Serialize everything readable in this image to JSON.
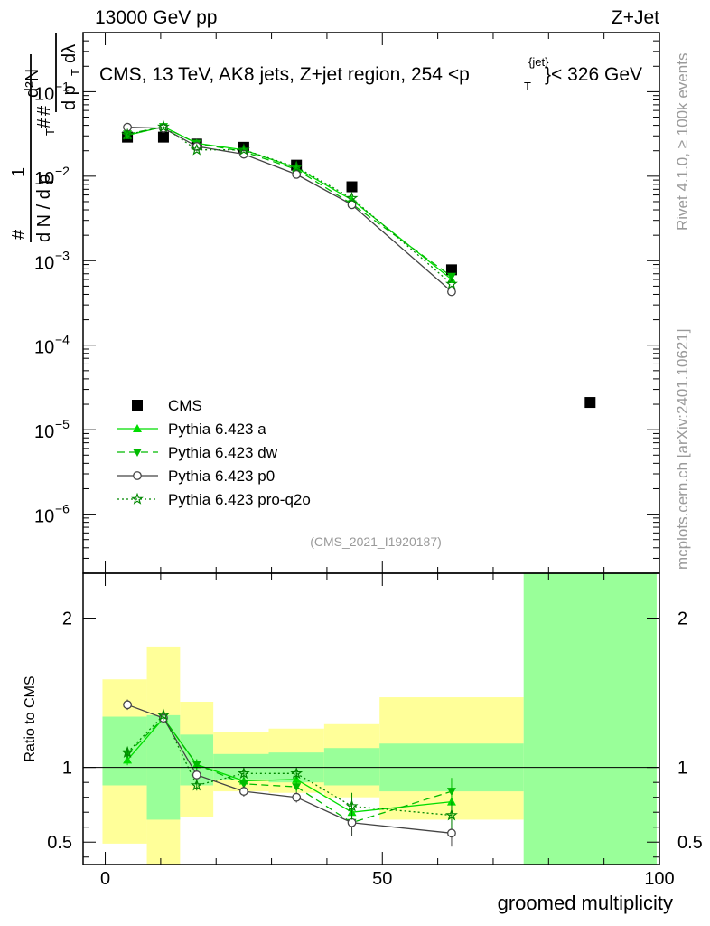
{
  "header": {
    "left": "13000 GeV pp",
    "right": "Z+Jet"
  },
  "side": {
    "rivet": "Rivet 4.1.0, ≥ 100k events",
    "mcplots": "mcplots.cern.ch [arXiv:2401.10621]"
  },
  "ylabel_main": {
    "hash": "#",
    "one": "1",
    "dN": "d N / d p",
    "T": "T",
    "hash2": "#",
    "dp": "d p",
    "T2": "T",
    "dl": "dλ",
    "hash3": "#",
    "d2N": "d²N"
  },
  "chart_data": {
    "type": "line",
    "title": "CMS, 13 TeV, AK8 jets, Z+jet region, 254 <p",
    "title_sup": "{jet}",
    "title_sub": "T",
    "title_end": "}< 326 GeV",
    "watermark": "(CMS_2021_I1920187)",
    "xlabel": "groomed multiplicity",
    "ylabel_ratio": "Ratio to CMS",
    "xlim": [
      -4,
      100
    ],
    "ylim_main_log10": [
      -6.7,
      -0.3
    ],
    "ylim_ratio": [
      0.35,
      2.3
    ],
    "x_ticks": [
      "0",
      "50",
      "100"
    ],
    "y_ticks_main": [
      "10",
      "10",
      "10",
      "10",
      "10",
      "10"
    ],
    "y_ticks_main_exp": [
      "−1",
      "−2",
      "−3",
      "−4",
      "−5",
      "−6"
    ],
    "y_ticks_ratio": [
      "0.5",
      "1",
      "2"
    ],
    "reference": {
      "name": "CMS",
      "x": [
        4,
        10.5,
        16.5,
        25,
        34.5,
        44.5,
        62.5,
        87.5
      ],
      "y": [
        0.029,
        0.029,
        0.024,
        0.022,
        0.0135,
        0.0075,
        0.00078,
        2.1e-05
      ]
    },
    "bands": {
      "edges": [
        -0.5,
        7.5,
        13.5,
        19.5,
        29.5,
        39.5,
        49.5,
        75.5,
        99.5
      ],
      "inner": [
        [
          0.88,
          1.34
        ],
        [
          0.65,
          1.35
        ],
        [
          0.88,
          1.22
        ],
        [
          0.92,
          1.09
        ],
        [
          0.9,
          1.1
        ],
        [
          0.88,
          1.13
        ],
        [
          0.84,
          1.16
        ],
        [
          0.0,
          3.0
        ]
      ],
      "outer": [
        [
          0.49,
          1.59
        ],
        [
          0.35,
          1.81
        ],
        [
          0.67,
          1.44
        ],
        [
          0.84,
          1.24
        ],
        [
          0.83,
          1.26
        ],
        [
          0.8,
          1.29
        ],
        [
          0.65,
          1.47
        ],
        [
          0.0,
          0.0
        ]
      ],
      "inner_color": "#99ff99",
      "outer_color": "#ffff99"
    },
    "series": [
      {
        "name": "Pythia 6.423 a",
        "color": "#00dd00",
        "dash": "",
        "marker": "triangle-up",
        "x": [
          4,
          10.5,
          16.5,
          25,
          34.5,
          44.5,
          62.5
        ],
        "y": [
          0.0305,
          0.0385,
          0.0245,
          0.0205,
          0.0125,
          0.00525,
          0.0006
        ],
        "ratio": [
          1.05,
          1.33,
          1.02,
          0.91,
          0.92,
          0.7,
          0.77
        ]
      },
      {
        "name": "Pythia 6.423 dw",
        "color": "#00bb00",
        "dash": "8,5",
        "marker": "triangle-down",
        "x": [
          4,
          10.5,
          16.5,
          25,
          34.5,
          44.5,
          62.5
        ],
        "y": [
          0.0315,
          0.0385,
          0.0245,
          0.0195,
          0.012,
          0.0047,
          0.00065
        ],
        "ratio": [
          1.09,
          1.33,
          1.02,
          0.89,
          0.87,
          0.63,
          0.84
        ]
      },
      {
        "name": "Pythia 6.423 p0",
        "color": "#444444",
        "dash": "",
        "marker": "circle-open",
        "x": [
          4,
          10.5,
          16.5,
          25,
          34.5,
          44.5,
          62.5
        ],
        "y": [
          0.038,
          0.037,
          0.0225,
          0.0182,
          0.0105,
          0.0046,
          0.00043
        ],
        "ratio": [
          1.42,
          1.33,
          0.95,
          0.84,
          0.8,
          0.63,
          0.56
        ]
      },
      {
        "name": "Pythia 6.423 pro-q2o",
        "color": "#008800",
        "dash": "2,3",
        "marker": "star-open",
        "x": [
          4,
          10.5,
          16.5,
          25,
          34.5,
          44.5,
          62.5
        ],
        "y": [
          0.031,
          0.0385,
          0.0205,
          0.0205,
          0.0128,
          0.0055,
          0.00053
        ],
        "ratio": [
          1.1,
          1.35,
          0.88,
          0.96,
          0.96,
          0.74,
          0.68
        ]
      }
    ]
  }
}
